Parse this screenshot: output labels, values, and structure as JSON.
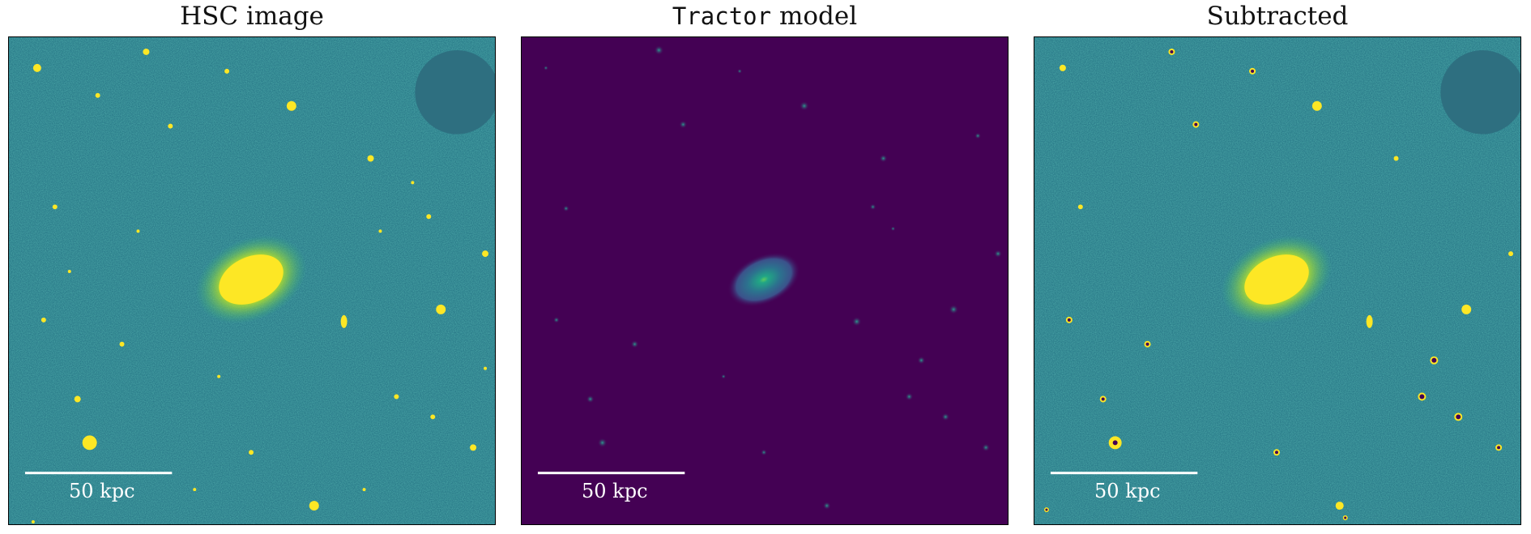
{
  "panels": [
    {
      "title": "HSC image",
      "scalebar_label": "50 kpc"
    },
    {
      "title_mono": "Tractor",
      "title_rest": " model",
      "scalebar_label": "50 kpc"
    },
    {
      "title": "Subtracted",
      "scalebar_label": "50 kpc"
    }
  ],
  "colors": {
    "viridis_dark": "#440154",
    "viridis_teal": "#2a788e",
    "viridis_mid": "#21918c",
    "viridis_green": "#5ec962",
    "viridis_yellow": "#fde725"
  }
}
